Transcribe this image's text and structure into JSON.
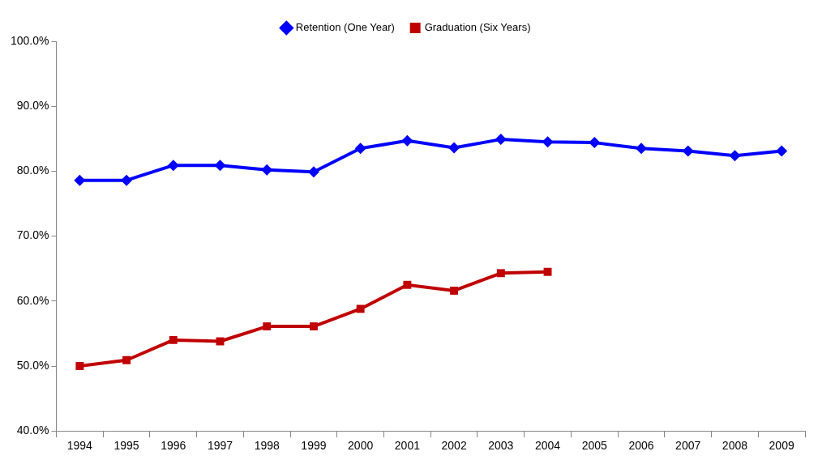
{
  "chart_data": {
    "type": "line",
    "categories": [
      "1994",
      "1995",
      "1996",
      "1997",
      "1998",
      "1999",
      "2000",
      "2001",
      "2002",
      "2003",
      "2004",
      "2005",
      "2006",
      "2007",
      "2008",
      "2009"
    ],
    "series": [
      {
        "name": "Retention (One Year)",
        "color": "#0000ff",
        "marker": "diamond",
        "values": [
          78.6,
          78.6,
          80.9,
          80.9,
          80.2,
          79.9,
          83.5,
          84.7,
          83.6,
          84.9,
          84.5,
          84.4,
          83.5,
          83.1,
          82.4,
          83.1
        ]
      },
      {
        "name": "Graduation (Six Years)",
        "color": "#c00000",
        "marker": "square",
        "values": [
          50.0,
          50.9,
          54.0,
          53.8,
          56.1,
          56.1,
          58.8,
          62.5,
          61.6,
          64.3,
          64.5,
          null,
          null,
          null,
          null,
          null
        ]
      }
    ],
    "ylim": [
      40,
      100
    ],
    "yticks": [
      {
        "value": 40,
        "label": "40.0%"
      },
      {
        "value": 50,
        "label": "50.0%"
      },
      {
        "value": 60,
        "label": "60.0%"
      },
      {
        "value": 70,
        "label": "70.0%"
      },
      {
        "value": 80,
        "label": "80.0%"
      },
      {
        "value": 90,
        "label": "90.0%"
      },
      {
        "value": 100,
        "label": "100.0%"
      }
    ],
    "grid": false,
    "legend": "top",
    "line_style": "solid"
  }
}
